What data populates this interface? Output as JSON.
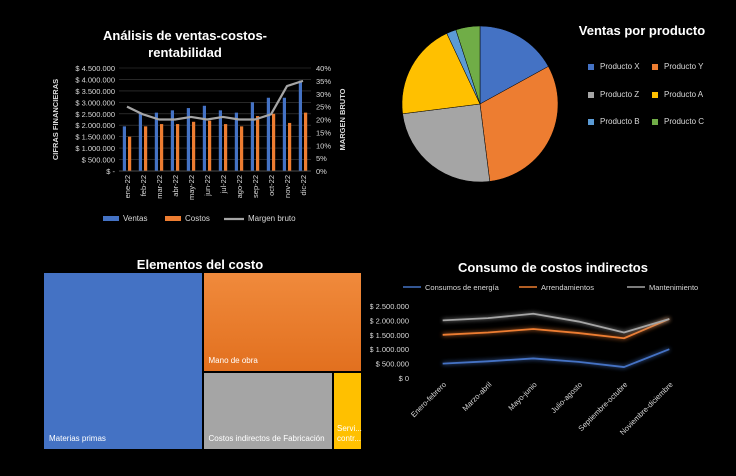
{
  "colors": {
    "blue": "#4472c4",
    "orange": "#ed7d31",
    "gray": "#a5a5a5",
    "yellow": "#ffc000",
    "lightblue": "#5b9bd5",
    "green": "#70ad47"
  },
  "chart_data": [
    {
      "type": "bar",
      "title": "Análisis de ventas-costos-rentabilidad",
      "title_line1": "Análisis de ventas-costos-",
      "title_line2": "rentabilidad",
      "ylabel": "CIFRAS FINANCIERAS",
      "y2label": "MARGEN BRUTO",
      "categories": [
        "ene-22",
        "feb-22",
        "mar-22",
        "abr-22",
        "may-22",
        "jun-22",
        "jul-22",
        "ago-22",
        "sep-22",
        "oct-22",
        "nov-22",
        "dic-22"
      ],
      "ylim": [
        0,
        4500000
      ],
      "y2lim": [
        0,
        40
      ],
      "yticks": [
        "$ -",
        "$ 500.000",
        "$ 1.000.000",
        "$ 1.500.000",
        "$ 2.000.000",
        "$ 2.500.000",
        "$ 3.000.000",
        "$ 3.500.000",
        "$ 4.000.000",
        "$ 4.500.000"
      ],
      "y2ticks": [
        "0%",
        "5%",
        "10%",
        "15%",
        "20%",
        "25%",
        "30%",
        "35%",
        "40%"
      ],
      "series": [
        {
          "name": "Ventas",
          "type": "bar",
          "values": [
            1950000,
            2500000,
            2550000,
            2650000,
            2750000,
            2850000,
            2650000,
            2550000,
            3000000,
            3200000,
            3200000,
            3950000
          ]
        },
        {
          "name": "Costos",
          "type": "bar",
          "values": [
            1500000,
            1950000,
            2050000,
            2050000,
            2150000,
            2200000,
            2050000,
            1950000,
            2400000,
            2500000,
            2100000,
            2550000
          ]
        },
        {
          "name": "Margen bruto",
          "type": "line",
          "axis": "secondary",
          "values": [
            25,
            22,
            20,
            20,
            21,
            20,
            21,
            20,
            20,
            22,
            33,
            35
          ]
        }
      ]
    },
    {
      "type": "pie",
      "title": "Ventas por producto",
      "labels": [
        "Producto X",
        "Producto Y",
        "Producto Z",
        "Producto A",
        "Producto B",
        "Producto C"
      ],
      "values": [
        17,
        31,
        25,
        20,
        2,
        5
      ]
    },
    {
      "type": "treemap",
      "title": "Elementos del costo",
      "labels": [
        "Materias primas",
        "Mano de obra",
        "Costos indirectos de Fabricación",
        "Servicios contratados"
      ],
      "display_labels": [
        "Materias primas",
        "Mano de obra",
        "Costos indirectos de Fabricación",
        "Servi... contr..."
      ],
      "values": [
        50,
        28,
        18,
        4
      ]
    },
    {
      "type": "line",
      "title": "Consumo de costos indirectos",
      "categories": [
        "Enero-febrero",
        "Marzo-abril",
        "Mayo-junio",
        "Julio-agosto",
        "Septiembre-octubre",
        "Noviembre-diciembre"
      ],
      "ylim": [
        0,
        2500000
      ],
      "yticks": [
        "$ 0",
        "$ 500.000",
        "$ 1.000.000",
        "$ 1.500.000",
        "$ 2.000.000",
        "$ 2.500.000"
      ],
      "series": [
        {
          "name": "Consumos de energía",
          "values": [
            500000,
            580000,
            680000,
            560000,
            380000,
            1000000
          ]
        },
        {
          "name": "Arrendamientos",
          "values": [
            1500000,
            1580000,
            1700000,
            1560000,
            1380000,
            2050000
          ]
        },
        {
          "name": "Mantenimiento",
          "values": [
            2000000,
            2080000,
            2230000,
            1960000,
            1580000,
            2050000
          ]
        }
      ]
    }
  ]
}
